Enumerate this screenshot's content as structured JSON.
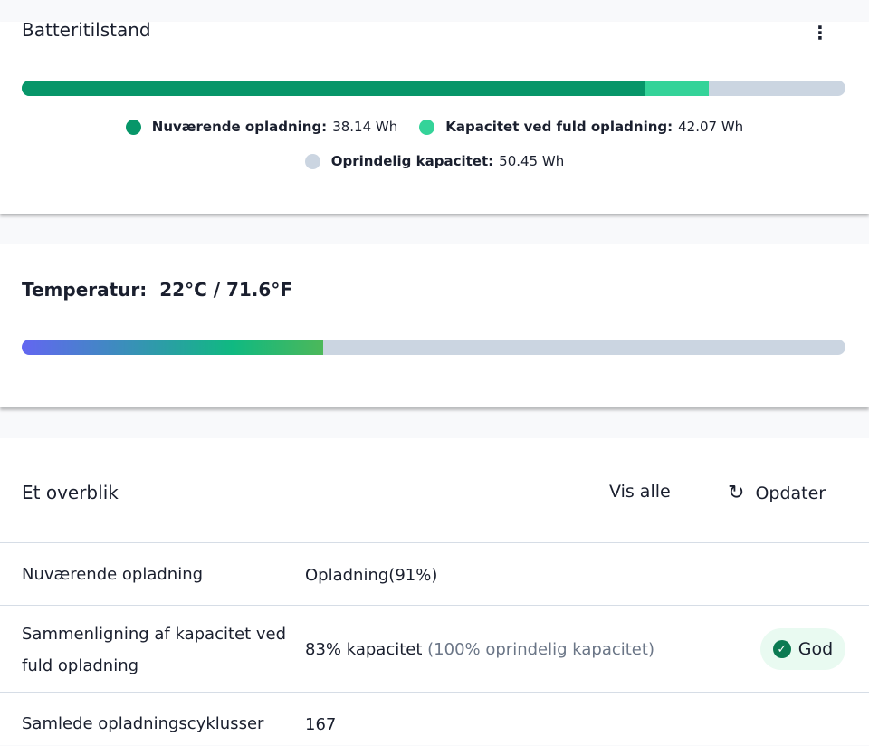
{
  "battery": {
    "title": "Batteritilstand",
    "menu_icon": "more-vertical-icon",
    "current": {
      "label": "Nuværende opladning:",
      "value": "38.14 Wh",
      "wh": 38.14,
      "color": "#079669"
    },
    "full": {
      "label": "Kapacitet ved fuld opladning:",
      "value": "42.07 Wh",
      "wh": 42.07,
      "color": "#34d399"
    },
    "original": {
      "label": "Oprindelig kapacitet:",
      "value": "50.45 Wh",
      "wh": 50.45,
      "color": "#cbd5e1"
    }
  },
  "temperature": {
    "label": "Temperatur:",
    "value": "22°C / 71.6°F",
    "bar_fraction": 0.366
  },
  "overview": {
    "title": "Et overblik",
    "view_all": "Vis alle",
    "refresh": "Opdater",
    "rows": [
      {
        "label": "Nuværende opladning",
        "value": "Opladning(91%)"
      },
      {
        "label": "Sammenligning af kapacitet ved fuld opladning",
        "value": "83% kapacitet",
        "note": "(100% oprindelig kapacitet)",
        "badge": "God"
      },
      {
        "label": "Samlede opladningscyklusser",
        "value": "167"
      }
    ]
  }
}
